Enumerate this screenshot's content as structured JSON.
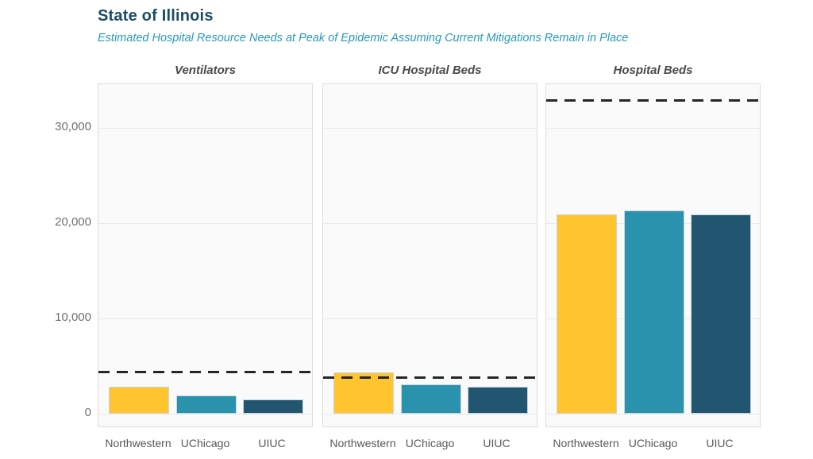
{
  "header": {
    "title": "State of Illinois",
    "subtitle": "Estimated Hospital Resource Needs at Peak of Epidemic Assuming Current Mitigations Remain in Place"
  },
  "colors": {
    "title_text": "#1a4c66",
    "subtitle_text": "#2599bb",
    "capacity_line": "#262626",
    "panel_background": "#fafafa",
    "panel_border": "#dcdcdc"
  },
  "chart_data": {
    "type": "bar",
    "facets_note": "three side-by-side facet panels sharing one y-axis",
    "categories": [
      "Northwestern",
      "UChicago",
      "UIUC"
    ],
    "bar_colors": [
      "#ffc42e",
      "#2b92ae",
      "#215570"
    ],
    "panels": [
      {
        "title": "Ventilators",
        "values": [
          2800,
          1900,
          1500
        ],
        "capacity_line": 4400
      },
      {
        "title": "ICU Hospital Beds",
        "values": [
          4300,
          3100,
          2800
        ],
        "capacity_line": 3800
      },
      {
        "title": "Hospital Beds",
        "values": [
          20900,
          21300,
          20900
        ],
        "capacity_line": 32900
      }
    ],
    "y_ticks": [
      0,
      10000,
      20000,
      30000
    ],
    "y_tick_labels": [
      "0",
      "10,000",
      "20,000",
      "30,000"
    ],
    "ylim": [
      0,
      34583
    ],
    "xlabel": "",
    "ylabel": "",
    "grid": true,
    "legend": "none",
    "capacity_line_style": "dashed"
  }
}
